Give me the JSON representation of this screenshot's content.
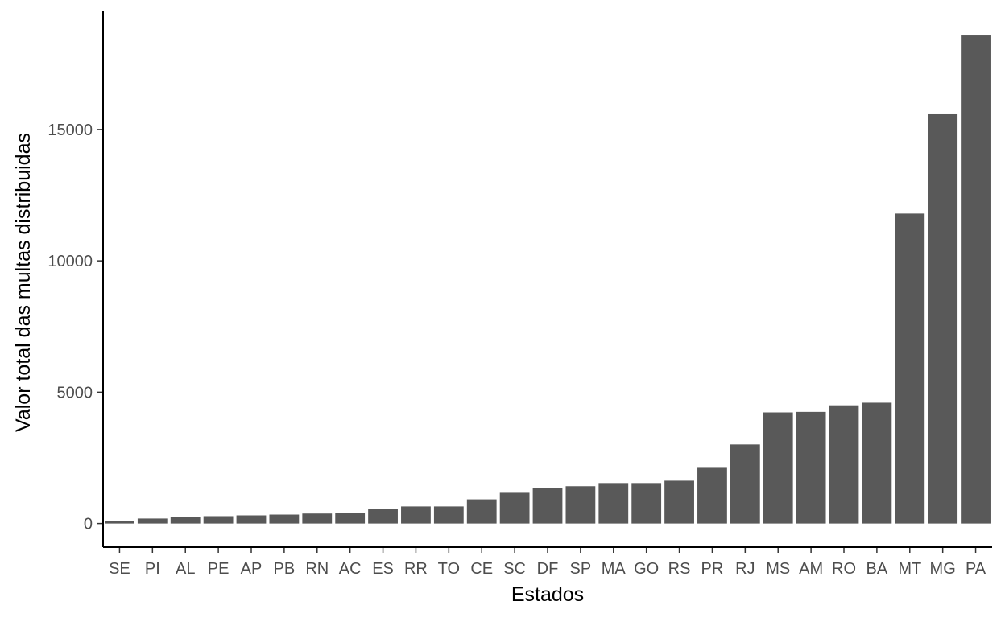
{
  "chart_data": {
    "type": "bar",
    "xlabel": "Estados",
    "ylabel": "Valor total das multas distribuidas",
    "categories": [
      "SE",
      "PI",
      "AL",
      "PE",
      "AP",
      "PB",
      "RN",
      "AC",
      "ES",
      "RR",
      "TO",
      "CE",
      "SC",
      "DF",
      "SP",
      "MA",
      "GO",
      "RS",
      "PR",
      "RJ",
      "MS",
      "AM",
      "RO",
      "BA",
      "MT",
      "MG",
      "PA"
    ],
    "values": [
      90,
      190,
      250,
      280,
      310,
      340,
      380,
      400,
      560,
      650,
      650,
      920,
      1170,
      1360,
      1420,
      1540,
      1540,
      1630,
      2150,
      3010,
      4230,
      4250,
      4500,
      4600,
      11800,
      15580,
      18580
    ],
    "ylim": [
      -900,
      19500
    ],
    "yticks": [
      0,
      5000,
      10000,
      15000
    ],
    "ytick_labels": [
      "0",
      "5000",
      "10000",
      "15000"
    ],
    "bar_color": "#595959",
    "grid": false,
    "legend": "none"
  }
}
